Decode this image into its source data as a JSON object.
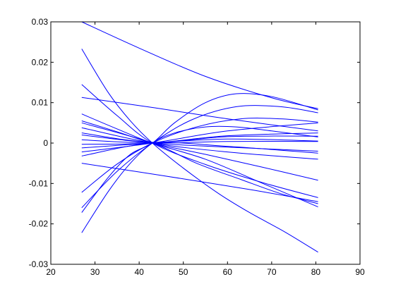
{
  "chart_data": {
    "type": "line",
    "title": "",
    "xlabel": "",
    "ylabel": "",
    "xlim": [
      20,
      90
    ],
    "ylim": [
      -0.03,
      0.03
    ],
    "x_ticks": [
      20,
      30,
      40,
      50,
      60,
      70,
      80,
      90
    ],
    "x_tick_labels": [
      "20",
      "30",
      "40",
      "50",
      "60",
      "70",
      "80",
      "90"
    ],
    "y_ticks": [
      -0.03,
      -0.02,
      -0.01,
      0,
      0.01,
      0.02,
      0.03
    ],
    "y_tick_labels": [
      "-0.03",
      "-0.02",
      "-0.01",
      "0",
      "0.01",
      "0.02",
      "0.03"
    ],
    "grid": false,
    "line_color": "#0000ff",
    "series": [
      {
        "points": [
          [
            27,
            0.03
          ],
          [
            40,
            0.0235
          ],
          [
            55,
            0.0165
          ],
          [
            70,
            0.0112
          ],
          [
            80.5,
            0.0085
          ]
        ]
      },
      {
        "points": [
          [
            27,
            0.0233
          ],
          [
            33,
            0.0125
          ],
          [
            38,
            0.0055
          ],
          [
            43,
            0.0
          ],
          [
            50,
            -0.0062
          ],
          [
            58,
            -0.0125
          ],
          [
            65,
            -0.0172
          ],
          [
            73,
            -0.022
          ],
          [
            80.5,
            -0.027
          ]
        ]
      },
      {
        "points": [
          [
            27,
            0.0145
          ],
          [
            35,
            0.0068
          ],
          [
            43,
            0.0
          ],
          [
            55,
            -0.0053
          ],
          [
            68,
            -0.0098
          ],
          [
            80.5,
            -0.0135
          ]
        ]
      },
      {
        "points": [
          [
            27,
            0.0113
          ],
          [
            43,
            0.0088
          ],
          [
            60,
            0.006
          ],
          [
            80.5,
            0.003
          ]
        ]
      },
      {
        "points": [
          [
            27,
            0.0072
          ],
          [
            35,
            0.0035
          ],
          [
            43,
            0.0
          ],
          [
            55,
            -0.004
          ],
          [
            68,
            -0.01
          ],
          [
            80.5,
            -0.0158
          ]
        ]
      },
      {
        "points": [
          [
            27,
            0.0055
          ],
          [
            35,
            0.0028
          ],
          [
            43,
            0.0
          ],
          [
            55,
            -0.0028
          ],
          [
            68,
            -0.006
          ],
          [
            80.5,
            -0.0092
          ]
        ]
      },
      {
        "points": [
          [
            27,
            0.0038
          ],
          [
            43,
            0.0
          ],
          [
            60,
            -0.0022
          ],
          [
            80.5,
            -0.004
          ]
        ]
      },
      {
        "points": [
          [
            27,
            0.0025
          ],
          [
            43,
            0.0002
          ],
          [
            60,
            0.0016
          ],
          [
            80.5,
            0.0017
          ]
        ]
      },
      {
        "points": [
          [
            27,
            0.002
          ],
          [
            43,
            0.0
          ],
          [
            60,
            -0.001
          ],
          [
            80.5,
            -0.002
          ]
        ]
      },
      {
        "points": [
          [
            27,
            0.0008
          ],
          [
            43,
            0.0
          ],
          [
            60,
            0.0004
          ],
          [
            80.5,
            0.0004
          ]
        ]
      },
      {
        "points": [
          [
            27,
            -0.0003
          ],
          [
            43,
            0.0
          ],
          [
            60,
            0.0018
          ],
          [
            80.5,
            0.0025
          ]
        ]
      },
      {
        "points": [
          [
            27,
            -0.0012
          ],
          [
            43,
            0.0
          ],
          [
            60,
            0.001
          ],
          [
            80.5,
            0.0005
          ]
        ]
      },
      {
        "points": [
          [
            27,
            -0.0022
          ],
          [
            43,
            0.0
          ],
          [
            60,
            0.003
          ],
          [
            80.5,
            0.005
          ]
        ]
      },
      {
        "points": [
          [
            27,
            -0.0032
          ],
          [
            43,
            0.0
          ],
          [
            60,
            -0.0008
          ],
          [
            80.5,
            -0.0025
          ]
        ]
      },
      {
        "points": [
          [
            27,
            -0.005
          ],
          [
            45,
            -0.008
          ],
          [
            65,
            -0.0115
          ],
          [
            80.5,
            -0.0145
          ]
        ]
      },
      {
        "points": [
          [
            27,
            -0.0122
          ],
          [
            35,
            -0.0052
          ],
          [
            43,
            0.0
          ],
          [
            53,
            0.004
          ],
          [
            63,
            0.006
          ],
          [
            72,
            0.006
          ],
          [
            80.5,
            0.0052
          ]
        ]
      },
      {
        "points": [
          [
            27,
            -0.016
          ],
          [
            35,
            -0.007
          ],
          [
            43,
            0.0
          ],
          [
            52,
            0.0058
          ],
          [
            62,
            0.009
          ],
          [
            72,
            0.009
          ],
          [
            80.5,
            0.0075
          ]
        ]
      },
      {
        "points": [
          [
            27,
            -0.0172
          ],
          [
            33,
            -0.0085
          ],
          [
            38,
            -0.0028
          ],
          [
            43,
            0.0
          ],
          [
            48,
            0.005
          ],
          [
            55,
            0.01
          ],
          [
            62,
            0.0122
          ],
          [
            70,
            0.0115
          ],
          [
            80.5,
            0.0082
          ]
        ]
      },
      {
        "points": [
          [
            27,
            -0.0222
          ],
          [
            33,
            -0.012
          ],
          [
            38,
            -0.005
          ],
          [
            43,
            0.0
          ],
          [
            48,
            0.0025
          ],
          [
            55,
            0.004
          ],
          [
            62,
            0.004
          ],
          [
            70,
            0.003
          ],
          [
            80.5,
            0.0015
          ]
        ]
      },
      {
        "points": [
          [
            27,
            0.005
          ],
          [
            43,
            0.0
          ],
          [
            53,
            -0.005
          ],
          [
            63,
            -0.009
          ],
          [
            72,
            -0.0125
          ],
          [
            80.5,
            -0.015
          ]
        ]
      }
    ]
  }
}
